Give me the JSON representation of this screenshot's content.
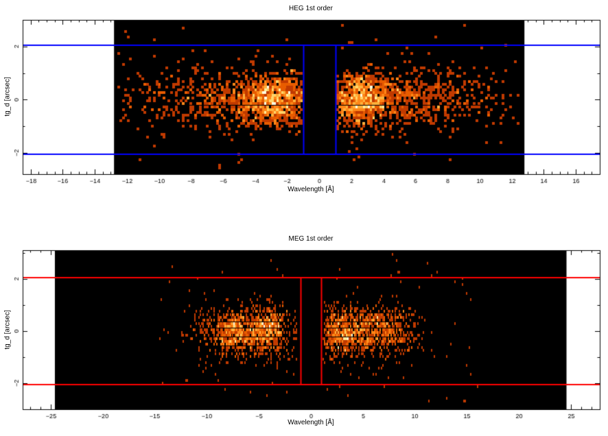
{
  "figure": {
    "background": "#ffffff",
    "frame_color": "#000000",
    "text_color": "#000000"
  },
  "chart_data": [
    {
      "type": "heatmap",
      "title": "HEG 1st order",
      "xlabel": "Wavelength [Å]",
      "ylabel": "tg_d [arcsec]",
      "xlim": [
        -18.5,
        17.5
      ],
      "ylim": [
        -2.8,
        3.0
      ],
      "xticks_major": [
        -18,
        -16,
        -14,
        -12,
        -10,
        -8,
        -6,
        -4,
        -2,
        0,
        2,
        4,
        6,
        8,
        10,
        12,
        14,
        16
      ],
      "xtick_minor_step": 0.5,
      "yticks_major": [
        -2,
        0,
        2
      ],
      "ytick_minor_step": 1,
      "grid": false,
      "detector_x_range": [
        -12.8,
        12.8
      ],
      "detector_color": "#000000",
      "extraction_region": {
        "color": "#0000ff",
        "tg_d_limits": [
          -2.05,
          2.05
        ],
        "inner_edges": [
          -1.0,
          1.0
        ]
      },
      "x_gap_halfwidth": 1.1,
      "bin_size": {
        "dx": 0.15,
        "dy": 0.105
      },
      "palette": [
        "#c03a00",
        "#e85c00",
        "#ff8718",
        "#ffb13c",
        "#ffd468",
        "#ffeb9a",
        "#fffbe0"
      ],
      "seed": 1234567,
      "clusters": [
        {
          "shape": "gauss",
          "cx": -2.7,
          "sx": 1.2,
          "sy": 0.5,
          "n": 900
        },
        {
          "shape": "gauss",
          "cx": -5.8,
          "sx": 1.9,
          "sy": 0.55,
          "n": 340
        },
        {
          "shape": "gauss",
          "cx": -9.5,
          "sx": 2.0,
          "sy": 0.6,
          "n": 110
        },
        {
          "shape": "gauss",
          "cx": 2.5,
          "sx": 1.15,
          "sy": 0.5,
          "n": 850
        },
        {
          "shape": "gauss",
          "cx": 5.3,
          "sx": 1.9,
          "sy": 0.55,
          "n": 340
        },
        {
          "shape": "gauss",
          "cx": 8.6,
          "sx": 2.0,
          "sy": 0.6,
          "n": 150
        },
        {
          "shape": "uniform",
          "x_range": [
            -12.6,
            -1.2
          ],
          "y_range": [
            -2.7,
            2.92
          ],
          "n": 48
        },
        {
          "shape": "uniform",
          "x_range": [
            1.2,
            12.6
          ],
          "y_range": [
            -2.7,
            2.92
          ],
          "n": 48
        }
      ]
    },
    {
      "type": "heatmap",
      "title": "MEG 1st order",
      "xlabel": "Wavelength [Å]",
      "ylabel": "tg_d [arcsec]",
      "xlim": [
        -27.7,
        27.8
      ],
      "ylim": [
        -3.0,
        3.1
      ],
      "xticks_major": [
        -25,
        -20,
        -15,
        -10,
        -5,
        0,
        5,
        10,
        15,
        20,
        25
      ],
      "xtick_minor_step": 1,
      "yticks_major": [
        -2,
        0,
        2
      ],
      "ytick_minor_step": 1,
      "grid": false,
      "detector_x_range": [
        -24.6,
        24.6
      ],
      "detector_color": "#000000",
      "extraction_region": {
        "color": "#ff0000",
        "tg_d_limits": [
          -2.05,
          2.05
        ],
        "inner_edges": [
          -1.0,
          1.0
        ]
      },
      "x_gap_halfwidth": 1.25,
      "bin_size": {
        "dx": 0.13,
        "dy": 0.115
      },
      "palette": [
        "#c03a00",
        "#e85c00",
        "#ff8718",
        "#ffb13c",
        "#ffd468",
        "#ffeb9a",
        "#fffbe0"
      ],
      "seed": 7654321,
      "clusters": [
        {
          "shape": "gauss",
          "cx": -7.3,
          "sx": 1.0,
          "sy": 0.42,
          "n": 500
        },
        {
          "shape": "gauss",
          "cx": -4.1,
          "sx": 1.1,
          "sy": 0.45,
          "n": 560
        },
        {
          "shape": "gauss",
          "cx": -9.8,
          "sx": 1.5,
          "sy": 0.5,
          "n": 100
        },
        {
          "shape": "gauss",
          "cx": -5.5,
          "sx": 2.8,
          "sy": 0.8,
          "n": 150
        },
        {
          "shape": "gauss",
          "cx": 2.8,
          "sx": 1.1,
          "sy": 0.45,
          "n": 520
        },
        {
          "shape": "gauss",
          "cx": 6.2,
          "sx": 1.5,
          "sy": 0.45,
          "n": 500
        },
        {
          "shape": "gauss",
          "cx": 8.8,
          "sx": 1.2,
          "sy": 0.5,
          "n": 100
        },
        {
          "shape": "gauss",
          "cx": 5.0,
          "sx": 2.8,
          "sy": 0.8,
          "n": 150
        },
        {
          "shape": "uniform",
          "x_range": [
            -14.5,
            -1.3
          ],
          "y_range": [
            -2.85,
            2.95
          ],
          "n": 42
        },
        {
          "shape": "uniform",
          "x_range": [
            1.3,
            16.0
          ],
          "y_range": [
            -2.85,
            2.95
          ],
          "n": 46
        }
      ]
    }
  ]
}
